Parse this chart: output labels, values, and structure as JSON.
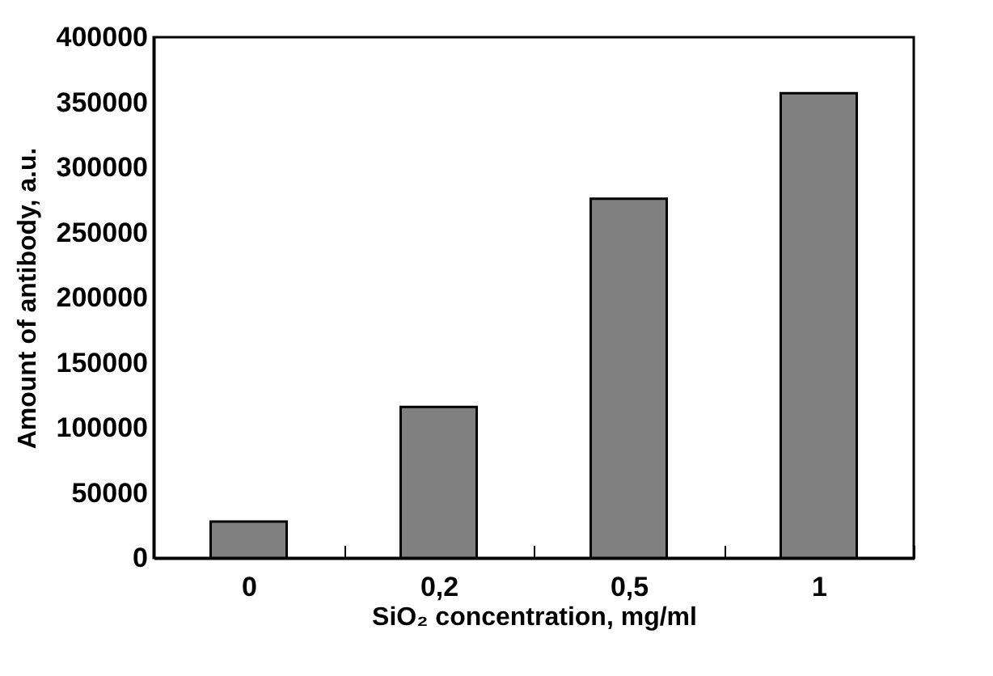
{
  "chart_data": {
    "type": "bar",
    "xlabel": "SiO₂ concentration, mg/ml",
    "ylabel": "Amount of antibody, a.u.",
    "categories": [
      "0",
      "0,2",
      "0,5",
      "1"
    ],
    "values": [
      28000,
      116000,
      276000,
      357000
    ],
    "color": "#808080",
    "ylim": [
      0,
      400000
    ],
    "yticks": [
      0,
      50000,
      100000,
      150000,
      200000,
      250000,
      300000,
      350000,
      400000
    ],
    "grid": false
  }
}
